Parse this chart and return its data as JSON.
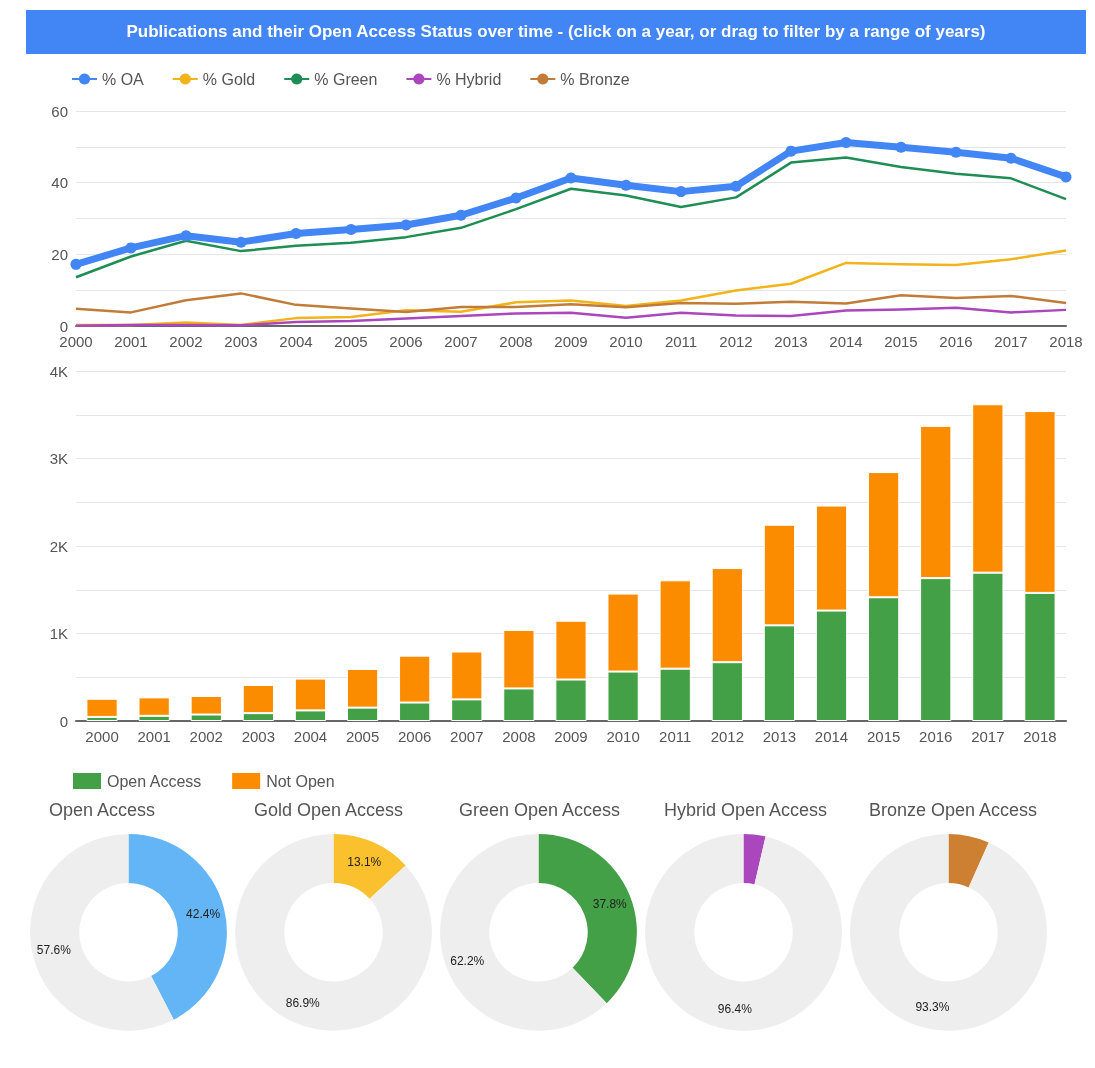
{
  "chart_data": [
    {
      "type": "line",
      "title": "Publications and their Open Access Status over time - (click on a year, or drag to filter by a range of years)",
      "categories": [
        "2000",
        "2001",
        "2002",
        "2003",
        "2004",
        "2005",
        "2006",
        "2007",
        "2008",
        "2009",
        "2010",
        "2011",
        "2012",
        "2013",
        "2014",
        "2015",
        "2016",
        "2017",
        "2018"
      ],
      "series": [
        {
          "name": "% OA",
          "color": "#4285f4",
          "marker": "circle",
          "values": [
            17.2,
            21.8,
            25.2,
            23.4,
            25.8,
            26.9,
            28.2,
            30.9,
            35.7,
            41.3,
            39.3,
            37.5,
            39.0,
            48.8,
            51.2,
            49.9,
            48.5,
            46.8,
            41.6
          ]
        },
        {
          "name": "% Gold",
          "color": "#f2b31b",
          "marker": "none",
          "values": [
            0.3,
            0.3,
            1.0,
            0.3,
            2.2,
            2.5,
            4.4,
            4.0,
            6.6,
            7.1,
            5.6,
            7.1,
            9.9,
            11.8,
            17.6,
            17.2,
            17.0,
            18.6,
            21.1
          ]
        },
        {
          "name": "% Green",
          "color": "#1e8e54",
          "marker": "none",
          "values": [
            13.6,
            19.4,
            23.8,
            20.9,
            22.4,
            23.2,
            24.8,
            27.4,
            32.6,
            38.3,
            36.4,
            33.2,
            35.9,
            45.6,
            47.0,
            44.4,
            42.5,
            41.2,
            35.4
          ]
        },
        {
          "name": "% Hybrid",
          "color": "#ab47bc",
          "marker": "none",
          "values": [
            0.1,
            0.3,
            0.3,
            0.2,
            1.1,
            1.4,
            2.1,
            2.8,
            3.5,
            3.7,
            2.3,
            3.7,
            2.9,
            2.8,
            4.3,
            4.6,
            5.1,
            3.8,
            4.5
          ]
        },
        {
          "name": "% Bronze",
          "color": "#c27c3a",
          "marker": "none",
          "values": [
            4.8,
            3.8,
            7.2,
            9.1,
            5.9,
            4.9,
            3.9,
            5.3,
            5.3,
            6.1,
            5.2,
            6.4,
            6.2,
            6.8,
            6.3,
            8.6,
            7.8,
            8.4,
            6.4
          ]
        }
      ],
      "ylim": [
        0,
        60
      ],
      "yticks": [
        0,
        {
          "value": 10,
          "label": null
        },
        20,
        {
          "value": 30,
          "label": null
        },
        40,
        {
          "value": 50,
          "label": null
        },
        60
      ],
      "grid": "y",
      "legend": "top left"
    },
    {
      "type": "bar",
      "stacked": true,
      "categories": [
        "2000",
        "2001",
        "2002",
        "2003",
        "2004",
        "2005",
        "2006",
        "2007",
        "2008",
        "2009",
        "2010",
        "2011",
        "2012",
        "2013",
        "2014",
        "2015",
        "2016",
        "2017",
        "2018"
      ],
      "series": [
        {
          "name": "Open Access",
          "color": "#43a047",
          "values": [
            47,
            59,
            74,
            90,
            121,
            153,
            211,
            247,
            372,
            474,
            565,
            598,
            672,
            1093,
            1262,
            1414,
            1633,
            1695,
            1464
          ]
        },
        {
          "name": "Not Open",
          "color": "#fb8c00",
          "values": [
            207,
            211,
            212,
            321,
            364,
            442,
            536,
            547,
            669,
            672,
            891,
            1010,
            1076,
            1150,
            1200,
            1431,
            1740,
            1925,
            2078
          ]
        }
      ],
      "ylim": [
        0,
        4000
      ],
      "yticks": [
        0,
        {
          "value": 500,
          "label": null
        },
        {
          "value": 1000,
          "label": "1K"
        },
        {
          "value": 1500,
          "label": null
        },
        {
          "value": 2000,
          "label": "2K"
        },
        {
          "value": 2500,
          "label": null
        },
        {
          "value": 3000,
          "label": "3K"
        },
        {
          "value": 3500,
          "label": null
        },
        {
          "value": 4000,
          "label": "4K"
        }
      ],
      "grid": "y",
      "legend": "bottom left"
    },
    {
      "type": "donut",
      "title": "Open Access",
      "categories": [
        null,
        null
      ],
      "values": [
        42.4,
        57.6
      ],
      "colors": [
        "#64b5f6",
        "#eeeeee"
      ],
      "value_labels": [
        "42.4%",
        "57.6%"
      ]
    },
    {
      "type": "donut",
      "title": "Gold Open Access",
      "categories": [
        null,
        null
      ],
      "values": [
        13.1,
        86.9
      ],
      "colors": [
        "#fbc02d",
        "#eeeeee"
      ],
      "value_labels": [
        "13.1%",
        "86.9%"
      ]
    },
    {
      "type": "donut",
      "title": "Green Open Access",
      "categories": [
        null,
        null
      ],
      "values": [
        37.8,
        62.2
      ],
      "colors": [
        "#43a047",
        "#eeeeee"
      ],
      "value_labels": [
        "37.8%",
        "62.2%"
      ]
    },
    {
      "type": "donut",
      "title": "Hybrid Open Access",
      "categories": [
        null,
        null
      ],
      "values": [
        3.6,
        96.4
      ],
      "colors": [
        "#ab47bc",
        "#eeeeee"
      ],
      "value_labels": [
        null,
        "96.4%"
      ]
    },
    {
      "type": "donut",
      "title": "Bronze Open Access",
      "categories": [
        null,
        null
      ],
      "values": [
        6.7,
        93.3
      ],
      "colors": [
        "#cd7f32",
        "#eeeeee"
      ],
      "value_labels": [
        null,
        "93.3%"
      ]
    }
  ]
}
